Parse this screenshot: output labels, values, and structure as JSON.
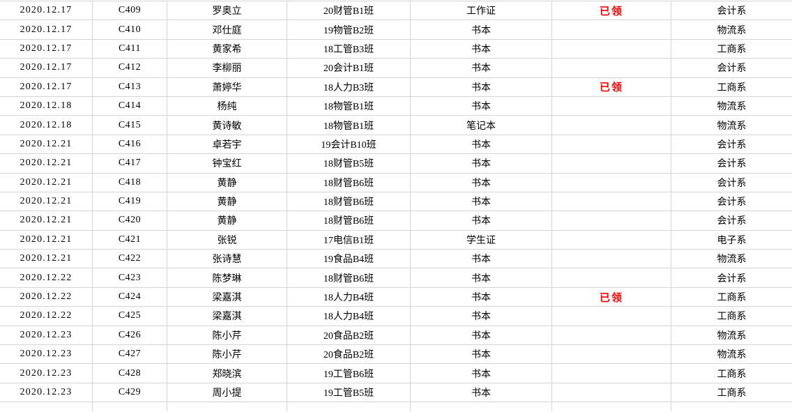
{
  "colors": {
    "status_red": "#ff0000",
    "gridline": "#d4d4d4",
    "text": "#000000",
    "background": "#ffffff"
  },
  "rows": [
    {
      "date": "2020.12.17",
      "code": "C409",
      "name": "罗奥立",
      "class": "20财管B1班",
      "item": "工作证",
      "status": "已领",
      "dept": "会计系"
    },
    {
      "date": "2020.12.17",
      "code": "C410",
      "name": "邓仕庭",
      "class": "19物管B2班",
      "item": "书本",
      "status": "",
      "dept": "物流系"
    },
    {
      "date": "2020.12.17",
      "code": "C411",
      "name": "黄家希",
      "class": "18工管B3班",
      "item": "书本",
      "status": "",
      "dept": "工商系"
    },
    {
      "date": "2020.12.17",
      "code": "C412",
      "name": "李柳丽",
      "class": "20会计B1班",
      "item": "书本",
      "status": "",
      "dept": "会计系"
    },
    {
      "date": "2020.12.17",
      "code": "C413",
      "name": "萧婷华",
      "class": "18人力B3班",
      "item": "书本",
      "status": "已领",
      "dept": "工商系"
    },
    {
      "date": "2020.12.18",
      "code": "C414",
      "name": "杨纯",
      "class": "18物管B1班",
      "item": "书本",
      "status": "",
      "dept": "物流系"
    },
    {
      "date": "2020.12.18",
      "code": "C415",
      "name": "黄诗敏",
      "class": "18物管B1班",
      "item": "笔记本",
      "status": "",
      "dept": "物流系"
    },
    {
      "date": "2020.12.21",
      "code": "C416",
      "name": "卓若宇",
      "class": "19会计B10班",
      "item": "书本",
      "status": "",
      "dept": "会计系"
    },
    {
      "date": "2020.12.21",
      "code": "C417",
      "name": "钟宝红",
      "class": "18财管B5班",
      "item": "书本",
      "status": "",
      "dept": "会计系"
    },
    {
      "date": "2020.12.21",
      "code": "C418",
      "name": "黄静",
      "class": "18财管B6班",
      "item": "书本",
      "status": "",
      "dept": "会计系"
    },
    {
      "date": "2020.12.21",
      "code": "C419",
      "name": "黄静",
      "class": "18财管B6班",
      "item": "书本",
      "status": "",
      "dept": "会计系"
    },
    {
      "date": "2020.12.21",
      "code": "C420",
      "name": "黄静",
      "class": "18财管B6班",
      "item": "书本",
      "status": "",
      "dept": "会计系"
    },
    {
      "date": "2020.12.21",
      "code": "C421",
      "name": "张锐",
      "class": "17电信B1班",
      "item": "学生证",
      "status": "",
      "dept": "电子系"
    },
    {
      "date": "2020.12.21",
      "code": "C422",
      "name": "张诗慧",
      "class": "19食品B4班",
      "item": "书本",
      "status": "",
      "dept": "物流系"
    },
    {
      "date": "2020.12.22",
      "code": "C423",
      "name": "陈梦琳",
      "class": "18财管B6班",
      "item": "书本",
      "status": "",
      "dept": "会计系"
    },
    {
      "date": "2020.12.22",
      "code": "C424",
      "name": "梁嘉淇",
      "class": "18人力B4班",
      "item": "书本",
      "status": "已领",
      "dept": "工商系"
    },
    {
      "date": "2020.12.22",
      "code": "C425",
      "name": "梁嘉淇",
      "class": "18人力B4班",
      "item": "书本",
      "status": "",
      "dept": "工商系"
    },
    {
      "date": "2020.12.23",
      "code": "C426",
      "name": "陈小芹",
      "class": "20食品B2班",
      "item": "书本",
      "status": "",
      "dept": "物流系"
    },
    {
      "date": "2020.12.23",
      "code": "C427",
      "name": "陈小芹",
      "class": "20食品B2班",
      "item": "书本",
      "status": "",
      "dept": "物流系"
    },
    {
      "date": "2020.12.23",
      "code": "C428",
      "name": "郑晓滨",
      "class": "19工管B6班",
      "item": "书本",
      "status": "",
      "dept": "工商系"
    },
    {
      "date": "2020.12.23",
      "code": "C429",
      "name": "周小提",
      "class": "19工管B5班",
      "item": "书本",
      "status": "",
      "dept": "工商系"
    }
  ]
}
